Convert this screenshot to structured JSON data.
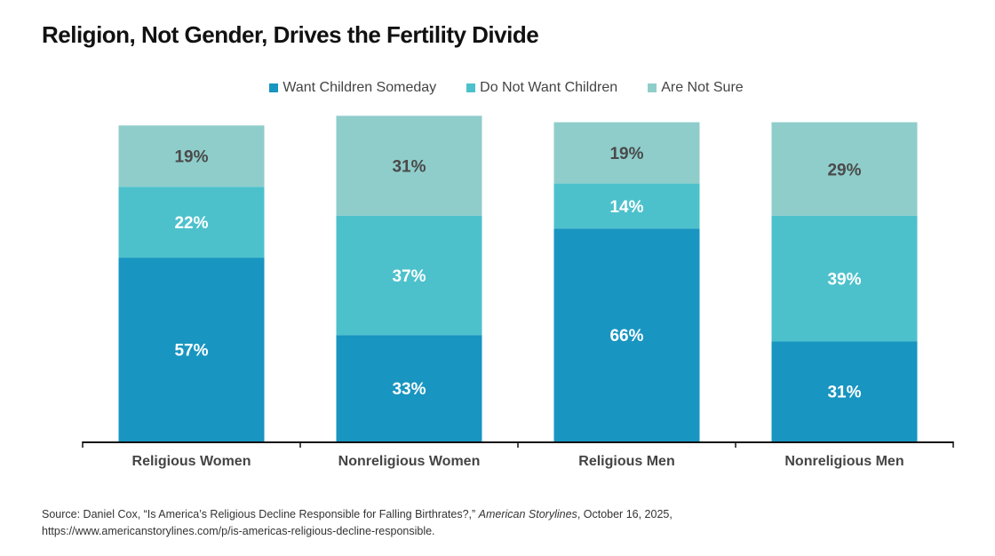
{
  "chart_data": {
    "type": "bar",
    "stacked": true,
    "title": "Religion, Not Gender, Drives the Fertility Divide",
    "xlabel": "",
    "ylabel": "",
    "ylim": [
      0,
      100
    ],
    "grid": false,
    "legend_position": "top-center",
    "categories": [
      "Religious Women",
      "Nonreligious Women",
      "Religious Men",
      "Nonreligious Men"
    ],
    "series": [
      {
        "name": "Want Children Someday",
        "color": "#1895c0",
        "label_color": "#ffffff",
        "values": [
          57,
          33,
          66,
          31
        ]
      },
      {
        "name": "Do Not Want Children",
        "color": "#4cc1cc",
        "label_color": "#ffffff",
        "values": [
          22,
          37,
          14,
          39
        ]
      },
      {
        "name": "Are Not Sure",
        "color": "#8fcdcb",
        "label_color": "#4a4a4a",
        "values": [
          19,
          31,
          19,
          29
        ]
      }
    ],
    "value_suffix": "%"
  },
  "source": {
    "prefix": "Source: Daniel Cox, “Is America’s Religious Decline Responsible for Falling Birthrates?,” ",
    "publication": "American Storylines",
    "suffix": ", October 16, 2025,",
    "url": "https://www.americanstorylines.com/p/is-americas-religious-decline-responsible."
  }
}
